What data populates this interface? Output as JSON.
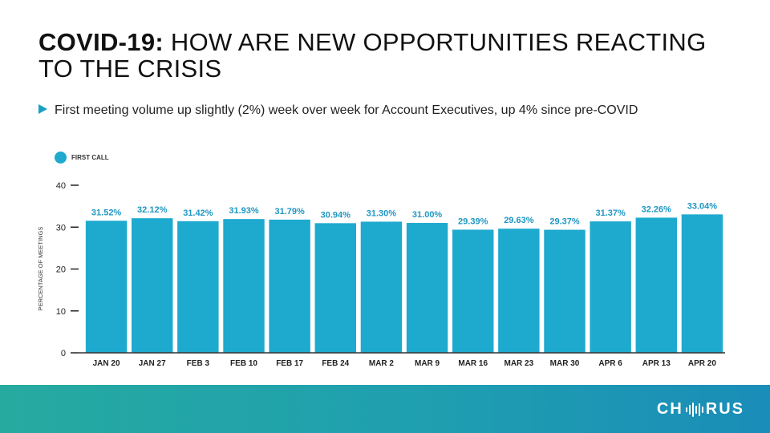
{
  "title": {
    "strong": "COVID-19:",
    "rest": " HOW ARE NEW OPPORTUNITIES REACTING TO THE CRISIS"
  },
  "bullet": "First meeting volume up slightly (2%) week over week for Account Executives, up 4% since pre-COVID",
  "legend": {
    "label": "FIRST CALL",
    "color": "#1ea9cf"
  },
  "brand": {
    "logo_left": "CH",
    "logo_right": "RUS",
    "logo_icon": "sound-wave-icon"
  },
  "chart_data": {
    "type": "bar",
    "series_name": "FIRST CALL",
    "categories": [
      "JAN 20",
      "JAN 27",
      "FEB 3",
      "FEB 10",
      "FEB 17",
      "FEB 24",
      "MAR 2",
      "MAR 9",
      "MAR 16",
      "MAR 23",
      "MAR 30",
      "APR 6",
      "APR 13",
      "APR 20"
    ],
    "values": [
      31.52,
      32.12,
      31.42,
      31.93,
      31.79,
      30.94,
      31.3,
      31.0,
      29.39,
      29.63,
      29.37,
      31.37,
      32.26,
      33.04
    ],
    "data_labels": [
      "31.52%",
      "32.12%",
      "31.42%",
      "31.93%",
      "31.79%",
      "30.94%",
      "31.30%",
      "31.00%",
      "29.39%",
      "29.63%",
      "29.37%",
      "31.37%",
      "32.26%",
      "33.04%"
    ],
    "ylabel": "PERCENTAGE OF MEETINGS",
    "xlabel": "",
    "ylim": [
      0,
      40
    ],
    "yticks": [
      0,
      10,
      20,
      30,
      40
    ],
    "ytick_labels": [
      "0",
      "10",
      "20",
      "30",
      "40"
    ],
    "grid": false,
    "legend_position": "top-left",
    "bar_color": "#1ea9cf"
  }
}
